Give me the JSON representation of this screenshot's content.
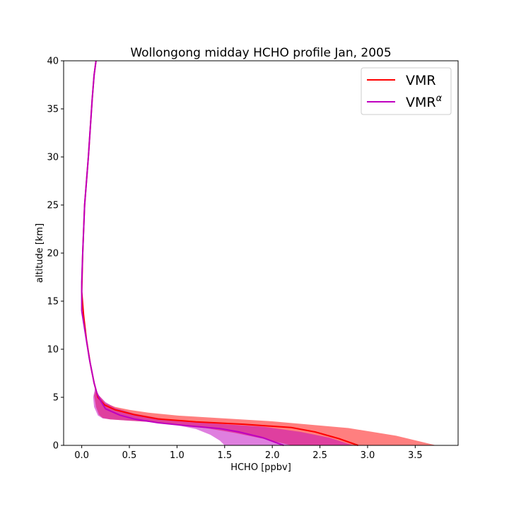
{
  "chart_data": {
    "type": "line",
    "title": "Wollongong midday HCHO profile Jan, 2005",
    "xlabel": "HCHO [ppbv]",
    "ylabel": "altitude [km]",
    "xlim": [
      -0.19,
      3.95
    ],
    "ylim": [
      0,
      40
    ],
    "xticks": [
      0.0,
      0.5,
      1.0,
      1.5,
      2.0,
      2.5,
      3.0,
      3.5
    ],
    "xtick_labels": [
      "0.0",
      "0.5",
      "1.0",
      "1.5",
      "2.0",
      "2.5",
      "3.0",
      "3.5"
    ],
    "yticks": [
      0,
      5,
      10,
      15,
      20,
      25,
      30,
      35,
      40
    ],
    "ytick_labels": [
      "0",
      "5",
      "10",
      "15",
      "20",
      "25",
      "30",
      "35",
      "40"
    ],
    "grid": false,
    "legend_position": "top-right",
    "series": [
      {
        "name": "VMR",
        "color": "#ff0000",
        "fill_color": "#ff0000",
        "line": [
          [
            2.9,
            0
          ],
          [
            2.7,
            0.7
          ],
          [
            2.45,
            1.4
          ],
          [
            2.2,
            1.85
          ],
          [
            1.7,
            2.2
          ],
          [
            1.2,
            2.45
          ],
          [
            0.8,
            2.75
          ],
          [
            0.55,
            3.2
          ],
          [
            0.35,
            3.7
          ],
          [
            0.24,
            4.2
          ],
          [
            0.17,
            5
          ],
          [
            0.13,
            6.5
          ],
          [
            0.09,
            8.5
          ],
          [
            0.05,
            11
          ],
          [
            0.02,
            13.5
          ],
          [
            0.0,
            16
          ],
          [
            0.01,
            20
          ],
          [
            0.03,
            25
          ],
          [
            0.07,
            30
          ],
          [
            0.09,
            33
          ],
          [
            0.11,
            36
          ],
          [
            0.13,
            38.5
          ],
          [
            0.15,
            40
          ]
        ],
        "band_upper": [
          [
            3.72,
            0
          ],
          [
            3.3,
            1.0
          ],
          [
            2.8,
            1.8
          ],
          [
            2.0,
            2.5
          ],
          [
            1.5,
            2.8
          ],
          [
            1.0,
            3.1
          ],
          [
            0.7,
            3.4
          ],
          [
            0.5,
            3.7
          ],
          [
            0.35,
            4.0
          ],
          [
            0.25,
            4.4
          ],
          [
            0.18,
            5.2
          ],
          [
            0.15,
            5.8
          ]
        ],
        "band_lower": [
          [
            2.2,
            0
          ],
          [
            1.9,
            0.7
          ],
          [
            1.6,
            1.3
          ],
          [
            1.3,
            1.8
          ],
          [
            1.0,
            2.2
          ],
          [
            0.7,
            2.45
          ],
          [
            0.45,
            2.6
          ],
          [
            0.3,
            2.7
          ],
          [
            0.22,
            2.85
          ],
          [
            0.18,
            3.2
          ],
          [
            0.15,
            4
          ],
          [
            0.13,
            5.2
          ],
          [
            0.15,
            5.8
          ]
        ]
      },
      {
        "name": "VMR",
        "name_superscript": "α",
        "color": "#bf00bf",
        "fill_color": "#bf00bf",
        "line": [
          [
            2.12,
            0
          ],
          [
            1.9,
            0.8
          ],
          [
            1.65,
            1.4
          ],
          [
            1.45,
            1.75
          ],
          [
            1.1,
            2.05
          ],
          [
            0.8,
            2.35
          ],
          [
            0.55,
            2.75
          ],
          [
            0.4,
            3.15
          ],
          [
            0.25,
            3.8
          ],
          [
            0.2,
            4.6
          ],
          [
            0.16,
            5.4
          ],
          [
            0.13,
            6.5
          ],
          [
            0.08,
            9
          ],
          [
            0.04,
            11.5
          ],
          [
            0.0,
            14
          ],
          [
            0.0,
            17
          ],
          [
            0.01,
            20
          ],
          [
            0.03,
            25
          ],
          [
            0.07,
            30
          ],
          [
            0.09,
            33
          ],
          [
            0.11,
            36
          ],
          [
            0.13,
            38.5
          ],
          [
            0.15,
            40
          ]
        ],
        "band_upper": [
          [
            2.85,
            0
          ],
          [
            2.6,
            0.8
          ],
          [
            2.3,
            1.4
          ],
          [
            1.9,
            1.95
          ],
          [
            1.5,
            2.2
          ],
          [
            1.1,
            2.5
          ],
          [
            0.8,
            2.85
          ],
          [
            0.55,
            3.3
          ],
          [
            0.35,
            3.9
          ],
          [
            0.25,
            4.5
          ],
          [
            0.18,
            5.2
          ],
          [
            0.14,
            6
          ]
        ],
        "band_lower": [
          [
            1.5,
            0
          ],
          [
            1.45,
            0.5
          ],
          [
            1.35,
            1.1
          ],
          [
            1.2,
            1.7
          ],
          [
            1.0,
            2.1
          ],
          [
            0.7,
            2.45
          ],
          [
            0.45,
            2.6
          ],
          [
            0.3,
            2.7
          ],
          [
            0.22,
            2.8
          ],
          [
            0.17,
            3.1
          ],
          [
            0.13,
            4
          ],
          [
            0.12,
            5
          ],
          [
            0.14,
            6
          ]
        ]
      }
    ]
  }
}
